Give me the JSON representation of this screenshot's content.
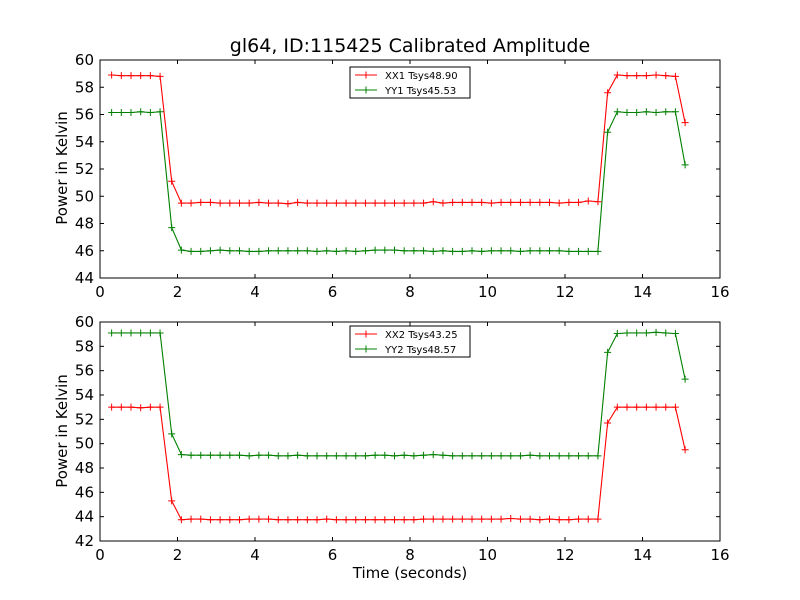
{
  "chart_data": [
    {
      "type": "line",
      "title": "gl64, ID:115425 Calibrated Amplitude",
      "xlabel": "",
      "ylabel": "Power in Kelvin",
      "xlim": [
        0,
        16
      ],
      "ylim": [
        44,
        60
      ],
      "xticks": [
        0,
        2,
        4,
        6,
        8,
        10,
        12,
        14,
        16
      ],
      "yticks": [
        44,
        46,
        48,
        50,
        52,
        54,
        56,
        58,
        60
      ],
      "grid": false,
      "legend": "top-center",
      "x": [
        0.3,
        0.55,
        0.8,
        1.05,
        1.3,
        1.55,
        1.85,
        2.1,
        2.35,
        2.6,
        2.85,
        3.1,
        3.35,
        3.6,
        3.85,
        4.1,
        4.35,
        4.6,
        4.85,
        5.1,
        5.35,
        5.6,
        5.85,
        6.1,
        6.35,
        6.6,
        6.85,
        7.1,
        7.35,
        7.6,
        7.85,
        8.1,
        8.35,
        8.6,
        8.85,
        9.1,
        9.35,
        9.6,
        9.85,
        10.1,
        10.35,
        10.6,
        10.85,
        11.1,
        11.35,
        11.6,
        11.85,
        12.1,
        12.35,
        12.6,
        12.85,
        13.1,
        13.35,
        13.6,
        13.85,
        14.1,
        14.35,
        14.6,
        14.85,
        15.1
      ],
      "series": [
        {
          "name": "XX1 Tsys48.90",
          "color": "#ff0000",
          "values": [
            58.9,
            58.85,
            58.85,
            58.85,
            58.85,
            58.8,
            51.1,
            49.5,
            49.5,
            49.55,
            49.55,
            49.5,
            49.5,
            49.5,
            49.5,
            49.55,
            49.5,
            49.5,
            49.45,
            49.55,
            49.5,
            49.5,
            49.5,
            49.5,
            49.5,
            49.5,
            49.5,
            49.5,
            49.5,
            49.5,
            49.5,
            49.5,
            49.5,
            49.6,
            49.5,
            49.55,
            49.55,
            49.55,
            49.55,
            49.5,
            49.55,
            49.55,
            49.55,
            49.55,
            49.55,
            49.55,
            49.5,
            49.55,
            49.55,
            49.65,
            49.6,
            57.6,
            58.9,
            58.85,
            58.85,
            58.85,
            58.9,
            58.85,
            58.8,
            55.4
          ]
        },
        {
          "name": "YY1 Tsys45.53",
          "color": "#008000",
          "values": [
            56.15,
            56.15,
            56.15,
            56.2,
            56.15,
            56.2,
            47.7,
            46.05,
            45.95,
            45.95,
            46.0,
            46.05,
            46.0,
            46.0,
            45.95,
            45.95,
            46.0,
            46.0,
            46.0,
            46.0,
            46.0,
            45.95,
            46.0,
            45.95,
            46.0,
            45.95,
            46.0,
            46.05,
            46.05,
            46.05,
            46.0,
            46.0,
            46.0,
            45.95,
            46.0,
            45.95,
            45.95,
            46.0,
            45.95,
            46.0,
            46.0,
            46.0,
            45.95,
            46.0,
            46.0,
            46.0,
            46.0,
            45.95,
            45.95,
            45.95,
            45.95,
            54.7,
            56.2,
            56.15,
            56.15,
            56.2,
            56.15,
            56.2,
            56.2,
            52.3
          ]
        }
      ]
    },
    {
      "type": "line",
      "title": "",
      "xlabel": "Time (seconds)",
      "ylabel": "Power in Kelvin",
      "xlim": [
        0,
        16
      ],
      "ylim": [
        42,
        60
      ],
      "xticks": [
        0,
        2,
        4,
        6,
        8,
        10,
        12,
        14,
        16
      ],
      "yticks": [
        42,
        44,
        46,
        48,
        50,
        52,
        54,
        56,
        58,
        60
      ],
      "grid": false,
      "legend": "top-center",
      "x": [
        0.3,
        0.55,
        0.8,
        1.05,
        1.3,
        1.55,
        1.85,
        2.1,
        2.35,
        2.6,
        2.85,
        3.1,
        3.35,
        3.6,
        3.85,
        4.1,
        4.35,
        4.6,
        4.85,
        5.1,
        5.35,
        5.6,
        5.85,
        6.1,
        6.35,
        6.6,
        6.85,
        7.1,
        7.35,
        7.6,
        7.85,
        8.1,
        8.35,
        8.6,
        8.85,
        9.1,
        9.35,
        9.6,
        9.85,
        10.1,
        10.35,
        10.6,
        10.85,
        11.1,
        11.35,
        11.6,
        11.85,
        12.1,
        12.35,
        12.6,
        12.85,
        13.1,
        13.35,
        13.6,
        13.85,
        14.1,
        14.35,
        14.6,
        14.85,
        15.1
      ],
      "series": [
        {
          "name": "XX2 Tsys43.25",
          "color": "#ff0000",
          "values": [
            53.0,
            53.0,
            53.0,
            52.95,
            53.0,
            53.0,
            45.3,
            43.75,
            43.8,
            43.8,
            43.75,
            43.75,
            43.75,
            43.75,
            43.8,
            43.8,
            43.8,
            43.75,
            43.75,
            43.75,
            43.75,
            43.75,
            43.8,
            43.75,
            43.75,
            43.75,
            43.75,
            43.75,
            43.75,
            43.75,
            43.75,
            43.75,
            43.8,
            43.8,
            43.8,
            43.8,
            43.8,
            43.8,
            43.8,
            43.8,
            43.8,
            43.85,
            43.8,
            43.8,
            43.75,
            43.8,
            43.75,
            43.75,
            43.8,
            43.8,
            43.8,
            51.7,
            53.0,
            53.0,
            53.0,
            53.0,
            53.0,
            53.0,
            53.0,
            49.5
          ]
        },
        {
          "name": "YY2 Tsys48.57",
          "color": "#008000",
          "values": [
            59.1,
            59.1,
            59.1,
            59.1,
            59.1,
            59.1,
            50.8,
            49.1,
            49.05,
            49.05,
            49.05,
            49.05,
            49.05,
            49.05,
            49.0,
            49.05,
            49.05,
            49.0,
            49.0,
            49.05,
            49.0,
            49.0,
            49.0,
            49.0,
            49.0,
            49.0,
            49.0,
            49.05,
            49.05,
            49.0,
            49.05,
            49.0,
            49.05,
            49.1,
            49.05,
            49.0,
            49.0,
            49.0,
            49.0,
            49.0,
            49.0,
            49.0,
            49.0,
            49.05,
            49.0,
            49.0,
            49.0,
            49.0,
            49.0,
            49.0,
            49.0,
            57.5,
            59.05,
            59.1,
            59.1,
            59.1,
            59.15,
            59.1,
            59.05,
            55.3
          ]
        }
      ]
    }
  ]
}
